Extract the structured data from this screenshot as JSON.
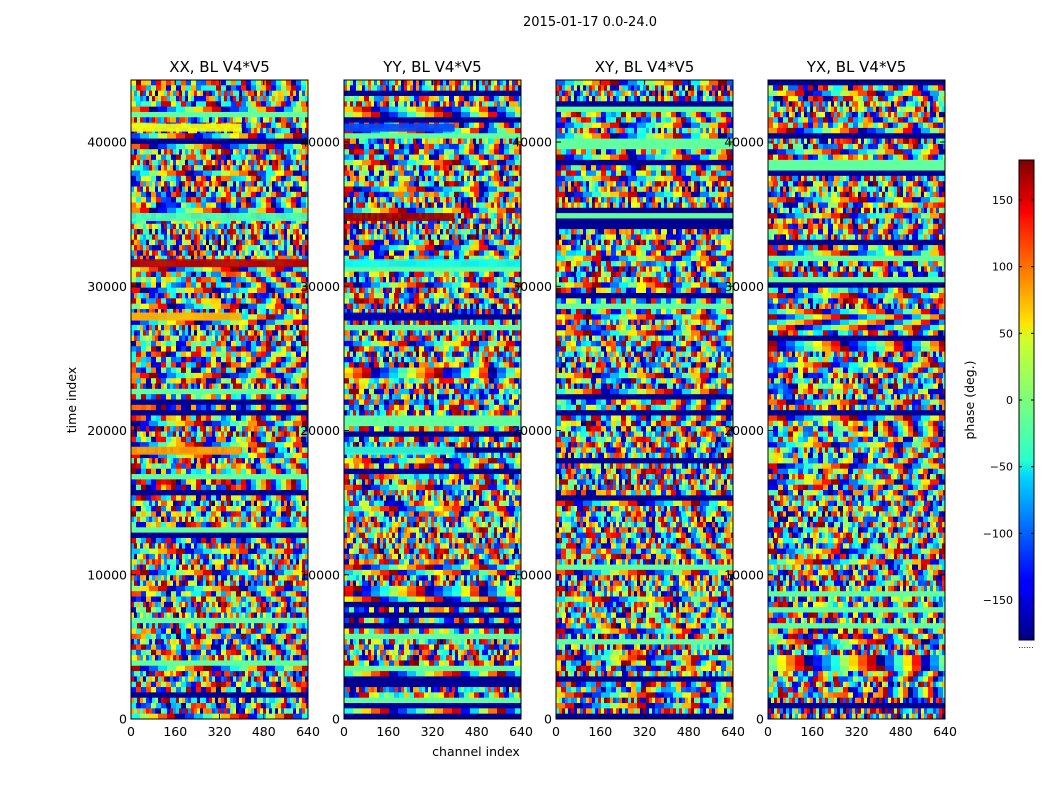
{
  "figure": {
    "suptitle": "2015-01-17 0.0-24.0",
    "xlabel": "channel index",
    "ylabel": "time index",
    "colorbar_label": "phase (deg.)",
    "colorbar_ticks": [
      "150",
      "100",
      "50",
      "0",
      "−50",
      "−100",
      "−150"
    ],
    "colorbar_offset_text": "......"
  },
  "chart_data": [
    {
      "type": "heatmap",
      "title": "XX, BL V4*V5",
      "xlabel": "channel index",
      "ylabel": "time index",
      "xlim": [
        0,
        640
      ],
      "ylim": [
        0,
        44300
      ],
      "xticks": [
        "0",
        "160",
        "320",
        "480",
        "640"
      ],
      "yticks": [
        "0",
        "10000",
        "20000",
        "30000",
        "40000"
      ],
      "colormap": "jet",
      "value_label": "phase (deg.)",
      "vmin": -180,
      "vmax": 180,
      "coherent_bands": [
        {
          "time_center": 41000,
          "channel_range": [
            0,
            400
          ],
          "phase": 40
        },
        {
          "time_center": 34800,
          "channel_range": [
            0,
            640
          ],
          "phase": -20
        },
        {
          "time_center": 31600,
          "channel_range": [
            0,
            640
          ],
          "phase": 160
        },
        {
          "time_center": 27900,
          "channel_range": [
            0,
            400
          ],
          "phase": 70
        },
        {
          "time_center": 18600,
          "channel_range": [
            0,
            400
          ],
          "phase": 80
        }
      ]
    },
    {
      "type": "heatmap",
      "title": "YY, BL V4*V5",
      "xlabel": "channel index",
      "ylabel": "time index",
      "xlim": [
        0,
        640
      ],
      "ylim": [
        0,
        44300
      ],
      "xticks": [
        "0",
        "160",
        "320",
        "480",
        "640"
      ],
      "yticks": [
        "0",
        "10000",
        "20000",
        "30000",
        "40000"
      ],
      "colormap": "jet",
      "value_label": "phase (deg.)",
      "vmin": -180,
      "vmax": 180,
      "coherent_bands": [
        {
          "time_center": 41000,
          "channel_range": [
            0,
            400
          ],
          "phase": -110
        },
        {
          "time_center": 34800,
          "channel_range": [
            0,
            400
          ],
          "phase": 170
        },
        {
          "time_center": 31600,
          "channel_range": [
            0,
            640
          ],
          "phase": -40
        },
        {
          "time_center": 27900,
          "channel_range": [
            0,
            400
          ],
          "phase": -160
        },
        {
          "time_center": 18600,
          "channel_range": [
            0,
            400
          ],
          "phase": -30
        }
      ]
    },
    {
      "type": "heatmap",
      "title": "XY, BL V4*V5",
      "xlabel": "channel index",
      "ylabel": "time index",
      "xlim": [
        0,
        640
      ],
      "ylim": [
        0,
        44300
      ],
      "xticks": [
        "0",
        "160",
        "320",
        "480",
        "640"
      ],
      "yticks": [
        "0",
        "10000",
        "20000",
        "30000",
        "40000"
      ],
      "colormap": "jet",
      "value_label": "phase (deg.)",
      "vmin": -180,
      "vmax": 180,
      "coherent_bands": []
    },
    {
      "type": "heatmap",
      "title": "YX, BL V4*V5",
      "xlabel": "channel index",
      "ylabel": "time index",
      "xlim": [
        0,
        640
      ],
      "ylim": [
        0,
        44300
      ],
      "xticks": [
        "0",
        "160",
        "320",
        "480",
        "640"
      ],
      "yticks": [
        "0",
        "10000",
        "20000",
        "30000",
        "40000"
      ],
      "colormap": "jet",
      "value_label": "phase (deg.)",
      "vmin": -180,
      "vmax": 180,
      "coherent_bands": []
    }
  ]
}
